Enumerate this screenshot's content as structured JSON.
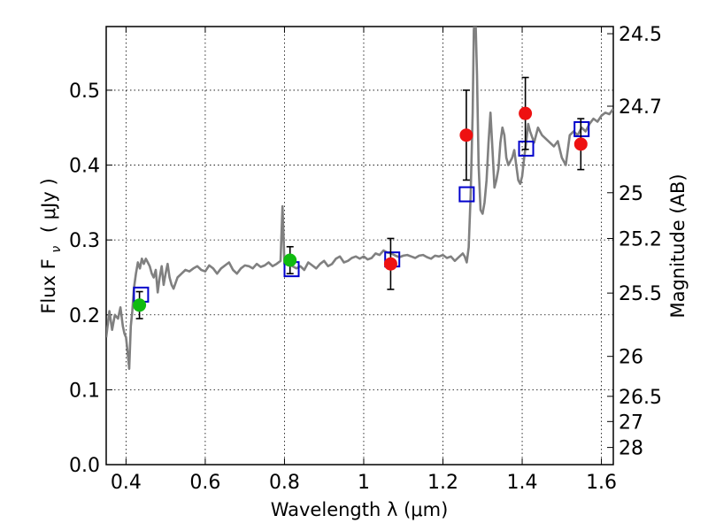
{
  "chart_data": {
    "type": "scatter",
    "xlabel": "Wavelength  λ (μm)",
    "ylabel": "Flux  F",
    "ylabel_sub": "ν",
    "ylabel_unit": "( μJy )",
    "y2label": "Magnitude (AB)",
    "xlim": [
      0.35,
      1.63
    ],
    "ylim": [
      0.0,
      0.585
    ],
    "grid": true,
    "xticks": [
      0.4,
      0.6,
      0.8,
      1.0,
      1.2,
      1.4,
      1.6
    ],
    "xtick_labels": [
      "0.4",
      "0.6",
      "0.8",
      "1",
      "1.2",
      "1.4",
      "1.6"
    ],
    "yticks": [
      0.0,
      0.1,
      0.2,
      0.3,
      0.4,
      0.5
    ],
    "ytick_labels": [
      "0.0",
      "0.1",
      "0.2",
      "0.3",
      "0.4",
      "0.5"
    ],
    "y2ticks": [
      24.5,
      24.7,
      25,
      25.2,
      25.5,
      26,
      26.5,
      27,
      28
    ],
    "y2tick_labels": [
      "24.5",
      "24.7",
      "25",
      "25.2",
      "25.5",
      "26",
      "26.5",
      "27",
      "28"
    ],
    "series": [
      {
        "kind": "line",
        "color": "#808080",
        "x": [
          0.35,
          0.358,
          0.365,
          0.372,
          0.38,
          0.386,
          0.392,
          0.396,
          0.4,
          0.404,
          0.408,
          0.412,
          0.416,
          0.42,
          0.425,
          0.43,
          0.435,
          0.44,
          0.445,
          0.45,
          0.455,
          0.46,
          0.465,
          0.47,
          0.475,
          0.48,
          0.485,
          0.49,
          0.495,
          0.5,
          0.505,
          0.51,
          0.515,
          0.52,
          0.53,
          0.54,
          0.55,
          0.56,
          0.57,
          0.58,
          0.59,
          0.6,
          0.61,
          0.62,
          0.63,
          0.64,
          0.65,
          0.66,
          0.67,
          0.68,
          0.69,
          0.7,
          0.71,
          0.72,
          0.73,
          0.74,
          0.75,
          0.76,
          0.77,
          0.78,
          0.79,
          0.795,
          0.8,
          0.803,
          0.81,
          0.82,
          0.83,
          0.84,
          0.85,
          0.86,
          0.87,
          0.88,
          0.89,
          0.9,
          0.91,
          0.92,
          0.93,
          0.94,
          0.95,
          0.96,
          0.97,
          0.98,
          0.99,
          1.0,
          1.01,
          1.02,
          1.03,
          1.04,
          1.05,
          1.06,
          1.07,
          1.08,
          1.09,
          1.1,
          1.11,
          1.12,
          1.13,
          1.14,
          1.15,
          1.16,
          1.17,
          1.18,
          1.19,
          1.2,
          1.21,
          1.22,
          1.23,
          1.24,
          1.25,
          1.255,
          1.26,
          1.265,
          1.27,
          1.275,
          1.278,
          1.282,
          1.286,
          1.29,
          1.295,
          1.3,
          1.305,
          1.31,
          1.315,
          1.32,
          1.325,
          1.33,
          1.335,
          1.34,
          1.345,
          1.35,
          1.355,
          1.36,
          1.365,
          1.37,
          1.375,
          1.38,
          1.385,
          1.39,
          1.395,
          1.4,
          1.405,
          1.41,
          1.415,
          1.42,
          1.43,
          1.44,
          1.45,
          1.46,
          1.47,
          1.48,
          1.49,
          1.5,
          1.51,
          1.52,
          1.53,
          1.54,
          1.55,
          1.56,
          1.57,
          1.58,
          1.59,
          1.6,
          1.61,
          1.62,
          1.63
        ],
        "y": [
          0.17,
          0.205,
          0.18,
          0.2,
          0.195,
          0.21,
          0.185,
          0.175,
          0.17,
          0.15,
          0.128,
          0.185,
          0.205,
          0.235,
          0.255,
          0.27,
          0.262,
          0.275,
          0.268,
          0.275,
          0.27,
          0.265,
          0.255,
          0.25,
          0.26,
          0.23,
          0.25,
          0.265,
          0.24,
          0.255,
          0.268,
          0.25,
          0.24,
          0.235,
          0.25,
          0.255,
          0.26,
          0.258,
          0.262,
          0.265,
          0.26,
          0.258,
          0.266,
          0.262,
          0.255,
          0.262,
          0.266,
          0.27,
          0.26,
          0.255,
          0.262,
          0.266,
          0.265,
          0.262,
          0.268,
          0.264,
          0.266,
          0.27,
          0.265,
          0.268,
          0.272,
          0.345,
          0.268,
          0.27,
          0.272,
          0.265,
          0.262,
          0.265,
          0.26,
          0.27,
          0.266,
          0.262,
          0.268,
          0.272,
          0.265,
          0.268,
          0.275,
          0.278,
          0.27,
          0.272,
          0.276,
          0.278,
          0.275,
          0.278,
          0.274,
          0.276,
          0.282,
          0.28,
          0.286,
          0.283,
          0.282,
          0.279,
          0.277,
          0.279,
          0.28,
          0.278,
          0.276,
          0.279,
          0.28,
          0.277,
          0.275,
          0.279,
          0.278,
          0.28,
          0.276,
          0.278,
          0.272,
          0.277,
          0.282,
          0.278,
          0.27,
          0.29,
          0.36,
          0.47,
          0.58,
          0.6,
          0.52,
          0.4,
          0.34,
          0.335,
          0.35,
          0.38,
          0.43,
          0.47,
          0.42,
          0.37,
          0.38,
          0.395,
          0.43,
          0.45,
          0.44,
          0.41,
          0.4,
          0.405,
          0.41,
          0.42,
          0.4,
          0.38,
          0.375,
          0.385,
          0.41,
          0.43,
          0.455,
          0.445,
          0.43,
          0.45,
          0.44,
          0.435,
          0.43,
          0.425,
          0.432,
          0.41,
          0.4,
          0.44,
          0.445,
          0.44,
          0.45,
          0.445,
          0.455,
          0.462,
          0.458,
          0.466,
          0.47,
          0.468,
          0.475
        ]
      },
      {
        "kind": "square",
        "color": "#0000cc",
        "x": [
          0.438,
          0.818,
          1.072,
          1.26,
          1.41,
          1.55
        ],
        "y": [
          0.227,
          0.261,
          0.274,
          0.361,
          0.422,
          0.448
        ]
      },
      {
        "kind": "point",
        "color": "#10bb10",
        "x": [
          0.434,
          0.814
        ],
        "y": [
          0.213,
          0.273
        ],
        "yerr": [
          0.018,
          0.018
        ]
      },
      {
        "kind": "point",
        "color": "#ee1111",
        "x": [
          1.068,
          1.259,
          1.408,
          1.548
        ],
        "y": [
          0.268,
          0.44,
          0.469,
          0.428
        ],
        "yerr": [
          0.034,
          0.06,
          0.048,
          0.034
        ]
      }
    ]
  }
}
